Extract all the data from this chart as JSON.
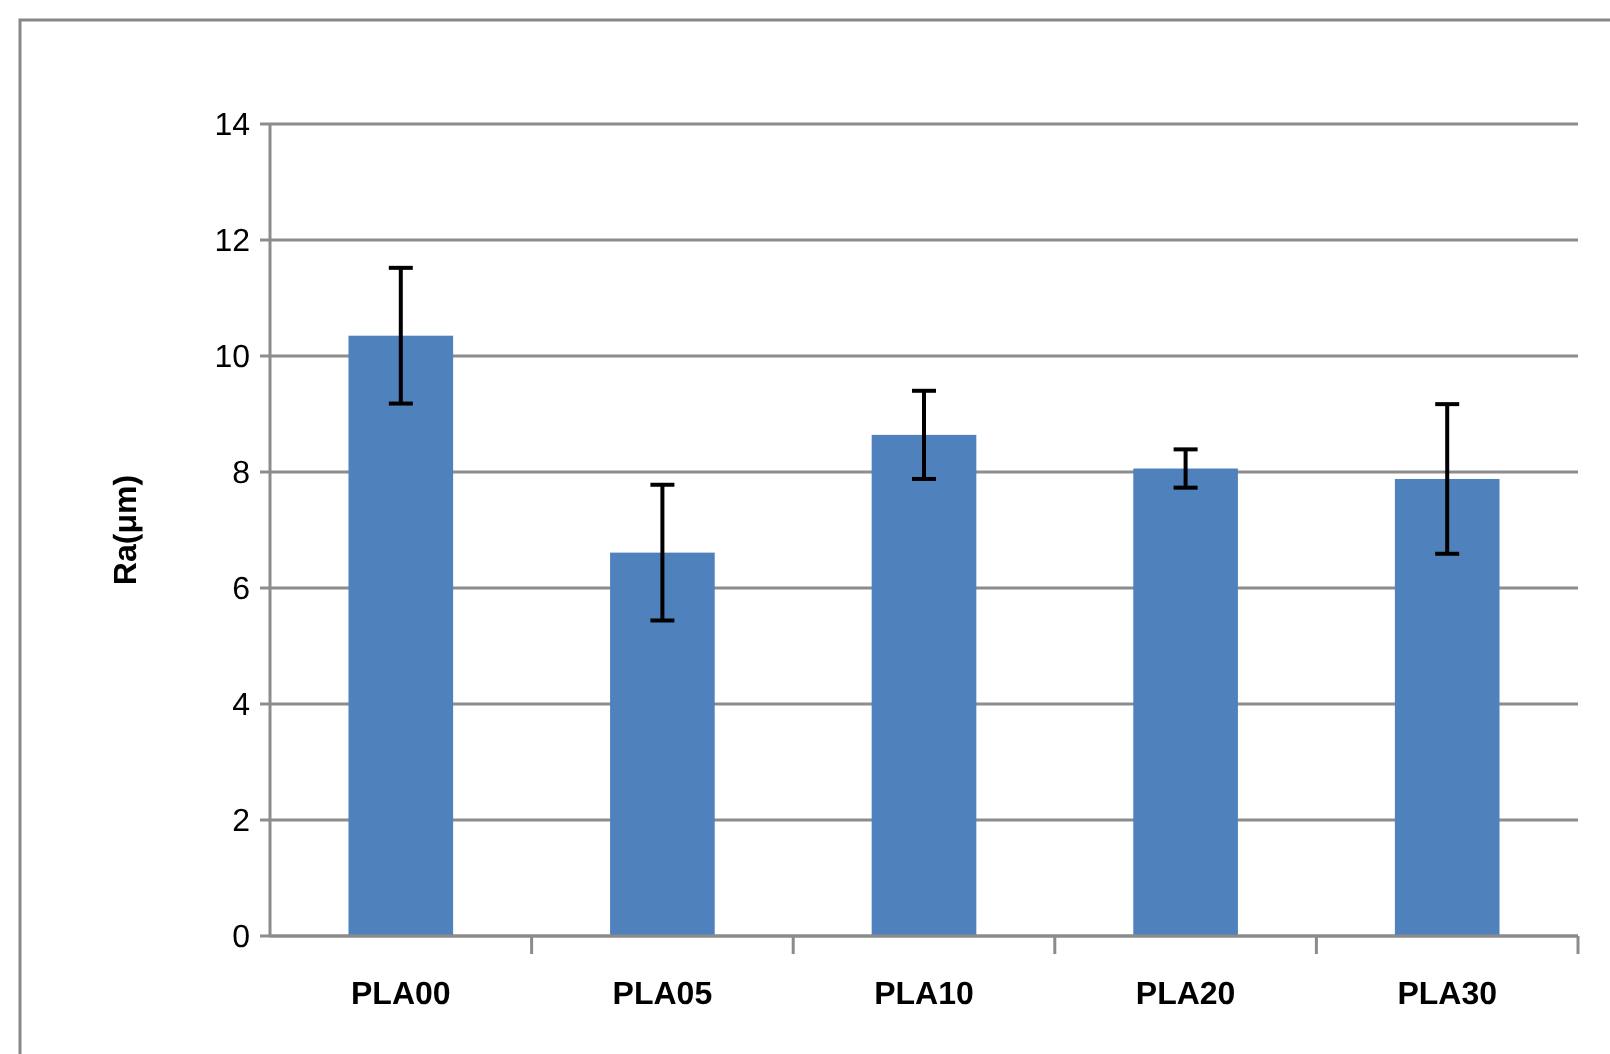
{
  "chart_data": {
    "type": "bar",
    "ylabel": "Ra(μm)",
    "categories": [
      "PLA00",
      "PLA05",
      "PLA10",
      "PLA20",
      "PLA30"
    ],
    "values": [
      10.35,
      6.61,
      8.64,
      8.06,
      7.88
    ],
    "errors": [
      1.17,
      1.17,
      0.76,
      0.33,
      1.29
    ],
    "color": "#4f81bd",
    "ylim": [
      0,
      14
    ],
    "yticks": [
      0,
      2,
      4,
      6,
      8,
      10,
      12,
      14
    ],
    "grid": "y"
  }
}
